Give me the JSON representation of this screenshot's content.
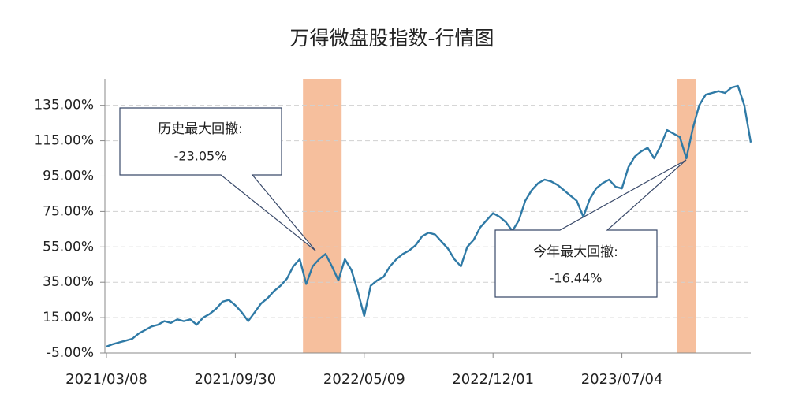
{
  "chart_data": {
    "type": "line",
    "title": "万得微盘股指数-行情图",
    "categories": [
      "2021/03/08",
      null,
      null,
      null,
      null,
      null,
      null,
      null,
      null,
      null,
      null,
      null,
      null,
      null,
      null,
      null,
      null,
      null,
      null,
      null,
      "2021/09/30",
      null,
      null,
      null,
      null,
      null,
      null,
      null,
      null,
      null,
      null,
      null,
      null,
      null,
      null,
      null,
      null,
      null,
      null,
      null,
      "2022/05/09",
      null,
      null,
      null,
      null,
      null,
      null,
      null,
      null,
      null,
      null,
      null,
      null,
      null,
      null,
      null,
      null,
      null,
      null,
      null,
      "2022/12/01",
      null,
      null,
      null,
      null,
      null,
      null,
      null,
      null,
      null,
      null,
      null,
      null,
      null,
      null,
      null,
      null,
      null,
      null,
      null,
      "2023/07/04",
      null,
      null,
      null,
      null,
      null,
      null,
      null,
      null,
      null,
      null,
      null,
      null,
      null,
      null,
      null,
      null,
      null,
      null,
      null,
      null
    ],
    "values": [
      -1.4,
      0,
      1,
      2,
      3,
      6,
      8,
      10,
      11,
      13,
      12,
      14,
      13,
      14,
      11,
      15,
      17,
      20,
      24,
      25,
      22,
      18,
      13,
      18,
      23,
      26,
      30,
      33,
      37,
      44,
      48,
      34,
      44,
      48,
      51,
      44,
      36,
      48,
      42,
      30,
      16,
      33,
      36,
      38,
      44,
      48,
      51,
      53,
      56,
      61,
      63,
      62,
      58,
      54,
      48,
      44,
      55,
      59,
      66,
      70,
      74,
      72,
      69,
      64,
      70,
      81,
      87,
      91,
      93,
      92,
      90,
      87,
      84,
      81,
      72,
      82,
      88,
      91,
      93,
      89,
      88,
      100,
      106,
      109,
      111,
      105,
      112,
      121,
      119,
      117,
      105,
      122,
      135,
      141,
      142,
      143,
      142,
      145,
      146,
      135,
      114
    ],
    "color": "#2f7aa6",
    "ylim": [
      -5,
      150
    ],
    "yticks": [
      {
        "value": -5,
        "label": "-5.00%"
      },
      {
        "value": 15,
        "label": "15.00%"
      },
      {
        "value": 35,
        "label": "35.00%"
      },
      {
        "value": 55,
        "label": "55.00%"
      },
      {
        "value": 75,
        "label": "75.00%"
      },
      {
        "value": 95,
        "label": "95.00%"
      },
      {
        "value": 115,
        "label": "115.00%"
      },
      {
        "value": 135,
        "label": "135.00%"
      }
    ],
    "grid": true,
    "highlight_ranges": [
      [
        31,
        36
      ],
      [
        89,
        91
      ]
    ],
    "highlight_color": "#f4b48c",
    "annotations": [
      {
        "lines": [
          "历史最大回撤:",
          "-23.05%"
        ]
      },
      {
        "lines": [
          "今年最大回撤:",
          "-16.44%"
        ]
      }
    ]
  }
}
